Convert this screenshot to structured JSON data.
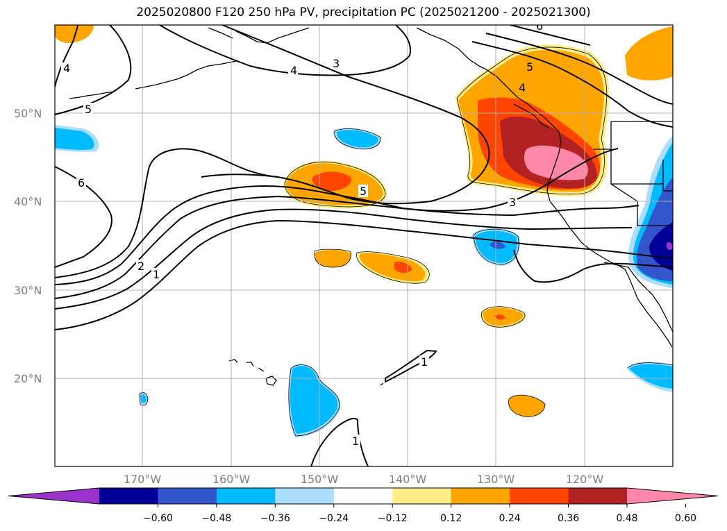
{
  "title": "2025020800 F120 250 hPa PV, precipitation PC (2025021200 - 2025021300)",
  "map": {
    "longitude_labels": [
      "170°W",
      "160°W",
      "150°W",
      "140°W",
      "130°W",
      "120°W"
    ],
    "latitude_labels": [
      "20°N",
      "30°N",
      "40°N",
      "50°N"
    ],
    "pv_contour_labels": [
      "4",
      "3",
      "4",
      "5",
      "6",
      "5",
      "5",
      "4",
      "3",
      "2",
      "1",
      "1",
      "1",
      "6"
    ]
  },
  "colorbar": {
    "colors": [
      "#9933cc",
      "#000099",
      "#3355cc",
      "#00bbff",
      "#aaddff",
      "#ffffff",
      "#ffee88",
      "#ffa500",
      "#ff4500",
      "#b22222",
      "#ff88aa"
    ],
    "tick_labels": [
      "−0.60",
      "−0.48",
      "−0.36",
      "−0.24",
      "−0.12",
      "0.12",
      "0.24",
      "0.36",
      "0.48",
      "0.60"
    ]
  }
}
